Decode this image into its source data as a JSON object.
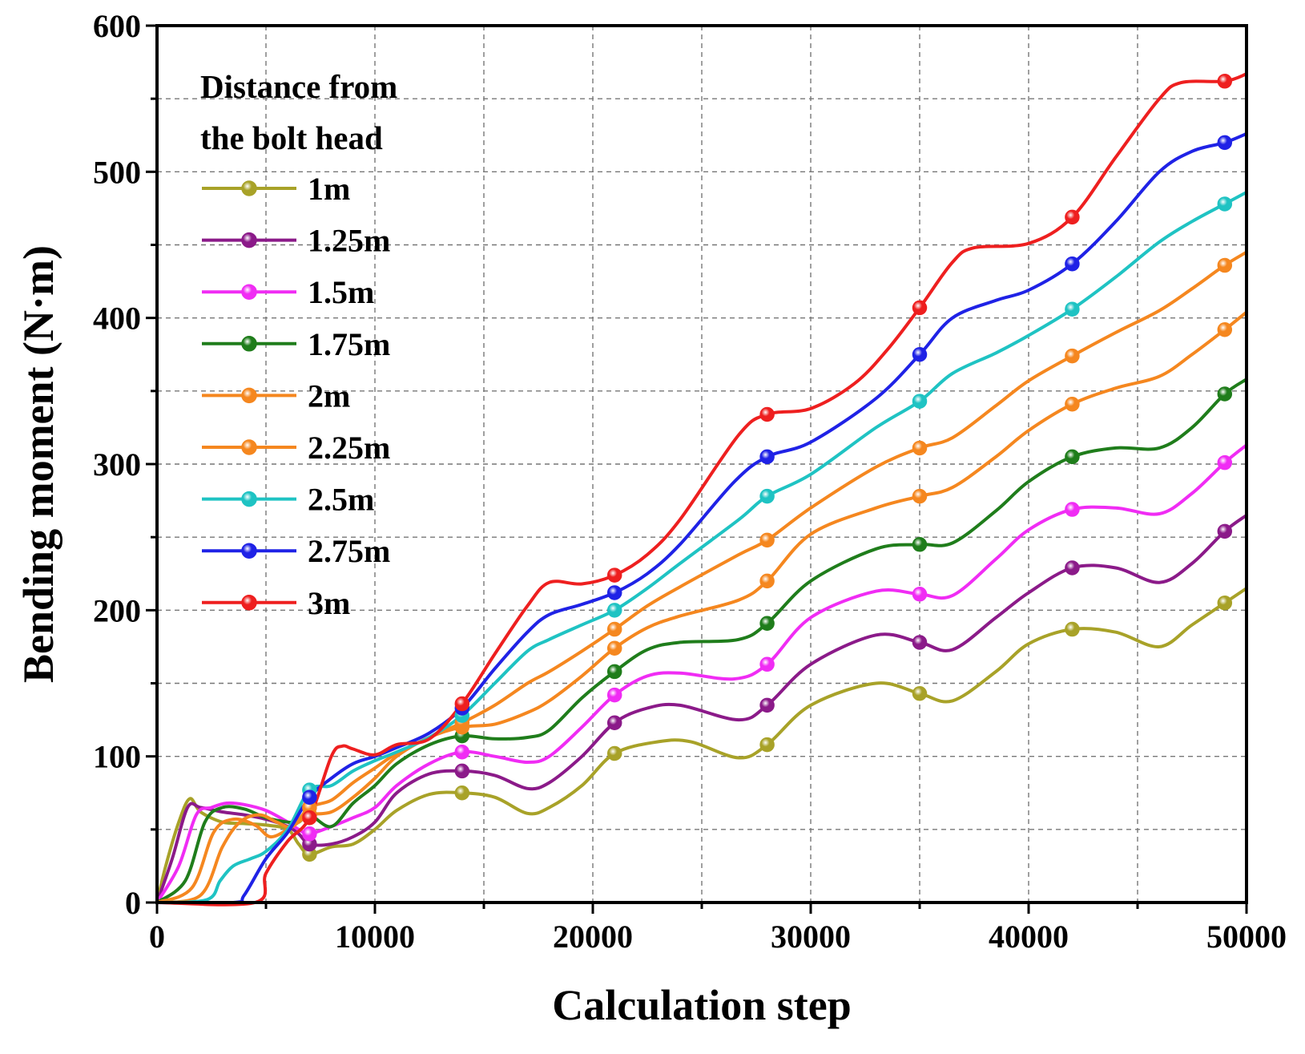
{
  "chart_data": {
    "type": "line",
    "xlabel": "Calculation step",
    "ylabel": "Bending moment (N·m)",
    "xlim": [
      0,
      50000
    ],
    "ylim": [
      0,
      600
    ],
    "x_ticks": [
      0,
      10000,
      20000,
      30000,
      40000,
      50000
    ],
    "x_tick_labels": [
      "0",
      "10000",
      "20000",
      "30000",
      "40000",
      "50000"
    ],
    "y_ticks": [
      0,
      100,
      200,
      300,
      400,
      500,
      600
    ],
    "y_tick_labels": [
      "0",
      "100",
      "200",
      "300",
      "400",
      "500",
      "600"
    ],
    "grid": true,
    "legend": {
      "title_lines": [
        "Distance from",
        "the bolt head"
      ],
      "placement": "top-left"
    },
    "marker_steps": [
      7000,
      14000,
      21000,
      28000,
      35000,
      42000,
      49000
    ],
    "series": [
      {
        "name": "1m",
        "color": "#a8a228",
        "x": [
          0,
          400,
          1000,
          1500,
          2000,
          3000,
          4000,
          5000,
          6000,
          6500,
          7000,
          8000,
          9000,
          10000,
          11000,
          12500,
          14000,
          15500,
          17000,
          18000,
          19500,
          21000,
          23000,
          24500,
          26700,
          28000,
          30000,
          33000,
          35000,
          36500,
          38500,
          40000,
          42000,
          44000,
          46000,
          47500,
          49000,
          50000
        ],
        "y": [
          0,
          25,
          55,
          71,
          62,
          55,
          54,
          53,
          50,
          40,
          33,
          38,
          40,
          50,
          63,
          74,
          75,
          72,
          61,
          65,
          80,
          102,
          110,
          110,
          99,
          108,
          135,
          150,
          143,
          138,
          158,
          177,
          187,
          185,
          175,
          190,
          205,
          215
        ]
      },
      {
        "name": "1.25m",
        "color": "#8b1a89",
        "x": [
          0,
          700,
          1400,
          2000,
          3000,
          4000,
          5000,
          6000,
          6500,
          7000,
          8000,
          9000,
          10000,
          11000,
          12500,
          14000,
          15500,
          17000,
          18000,
          19500,
          21000,
          22500,
          24000,
          26700,
          28000,
          30000,
          33000,
          35000,
          36500,
          38500,
          40000,
          42000,
          44000,
          46000,
          47500,
          49000,
          50000
        ],
        "y": [
          0,
          30,
          65,
          65,
          62,
          60,
          57,
          52,
          47,
          40,
          40,
          45,
          55,
          75,
          88,
          90,
          87,
          78,
          82,
          100,
          123,
          133,
          135,
          125,
          135,
          163,
          183,
          178,
          173,
          195,
          212,
          229,
          229,
          219,
          232,
          254,
          265
        ]
      },
      {
        "name": "1.5m",
        "color": "#f02cf4",
        "x": [
          0,
          1000,
          1800,
          2500,
          3200,
          4000,
          5000,
          6000,
          6500,
          7000,
          8000,
          9000,
          10000,
          11000,
          12500,
          14000,
          15500,
          17000,
          18000,
          19500,
          21000,
          22500,
          24000,
          26500,
          28000,
          30000,
          33000,
          35000,
          36500,
          38500,
          40000,
          42000,
          44000,
          46000,
          47500,
          49000,
          50000
        ],
        "y": [
          0,
          25,
          60,
          65,
          68,
          67,
          63,
          55,
          50,
          47,
          52,
          58,
          65,
          80,
          95,
          103,
          100,
          96,
          100,
          120,
          142,
          155,
          157,
          153,
          163,
          195,
          213,
          211,
          210,
          235,
          255,
          269,
          270,
          266,
          280,
          301,
          313
        ]
      },
      {
        "name": "1.75m",
        "color": "#1f7d1b",
        "x": [
          0,
          1300,
          2200,
          3000,
          4000,
          5000,
          6000,
          6500,
          7000,
          8000,
          9000,
          10000,
          11000,
          12500,
          14000,
          15500,
          17000,
          18000,
          19500,
          21000,
          22500,
          24000,
          26700,
          28000,
          30000,
          33000,
          35000,
          36500,
          38500,
          40000,
          42000,
          44000,
          46000,
          47500,
          49000,
          50000
        ],
        "y": [
          0,
          15,
          55,
          65,
          64,
          58,
          55,
          55,
          60,
          52,
          68,
          80,
          95,
          108,
          114,
          112,
          113,
          118,
          140,
          158,
          173,
          178,
          180,
          191,
          220,
          242,
          245,
          246,
          268,
          288,
          305,
          311,
          311,
          325,
          348,
          358
        ]
      },
      {
        "name": "2m",
        "color": "#f5871f",
        "x": [
          0,
          1600,
          2600,
          3500,
          4500,
          5200,
          6000,
          6500,
          7000,
          8000,
          9000,
          10000,
          11000,
          12500,
          14000,
          15500,
          17000,
          18000,
          19500,
          21000,
          22500,
          24000,
          26700,
          28000,
          30000,
          33000,
          35000,
          36500,
          38500,
          40000,
          42000,
          44000,
          46000,
          47500,
          49000,
          50000
        ],
        "y": [
          0,
          10,
          48,
          57,
          53,
          45,
          50,
          55,
          60,
          62,
          72,
          85,
          100,
          113,
          120,
          122,
          130,
          138,
          155,
          174,
          188,
          196,
          207,
          220,
          252,
          270,
          278,
          284,
          305,
          323,
          341,
          352,
          360,
          375,
          392,
          404
        ]
      },
      {
        "name": "2.25m",
        "color": "#f5871f",
        "x": [
          0,
          2000,
          3000,
          3800,
          4700,
          5500,
          6200,
          7000,
          8000,
          9000,
          10000,
          11000,
          12500,
          14000,
          15500,
          17000,
          18000,
          19500,
          21000,
          22500,
          24000,
          26700,
          28000,
          30000,
          33000,
          35000,
          36500,
          38500,
          40000,
          42000,
          44000,
          46000,
          47500,
          49000,
          50000
        ],
        "y": [
          0,
          5,
          38,
          55,
          60,
          55,
          52,
          65,
          70,
          82,
          92,
          102,
          113,
          123,
          135,
          150,
          158,
          172,
          187,
          203,
          216,
          238,
          248,
          270,
          298,
          311,
          318,
          340,
          357,
          374,
          390,
          405,
          420,
          436,
          445
        ]
      },
      {
        "name": "2.5m",
        "color": "#1fc3c3",
        "x": [
          0,
          2300,
          2900,
          3500,
          4300,
          5000,
          6000,
          7000,
          8000,
          9000,
          10000,
          11000,
          12500,
          14000,
          15500,
          17000,
          18000,
          19500,
          21000,
          22500,
          24000,
          26700,
          28000,
          30000,
          33000,
          35000,
          36500,
          38500,
          40000,
          42000,
          44000,
          46000,
          47500,
          49000,
          50000
        ],
        "y": [
          0,
          2,
          15,
          25,
          30,
          35,
          50,
          77,
          80,
          90,
          97,
          103,
          113,
          128,
          150,
          172,
          180,
          190,
          200,
          215,
          232,
          262,
          278,
          293,
          325,
          343,
          362,
          376,
          388,
          406,
          428,
          452,
          466,
          478,
          486
        ]
      },
      {
        "name": "2.75m",
        "color": "#1f22e6",
        "x": [
          0,
          3500,
          4000,
          5000,
          6000,
          7000,
          8000,
          9000,
          10000,
          11000,
          12500,
          14000,
          15500,
          17000,
          18000,
          19500,
          21000,
          22500,
          24000,
          26500,
          28000,
          30000,
          33000,
          35000,
          36500,
          38500,
          40000,
          42000,
          44000,
          46000,
          47500,
          49000,
          50000
        ],
        "y": [
          0,
          0,
          5,
          30,
          48,
          72,
          85,
          95,
          100,
          106,
          116,
          133,
          160,
          185,
          197,
          204,
          212,
          225,
          245,
          288,
          305,
          315,
          345,
          375,
          400,
          412,
          419,
          437,
          466,
          500,
          514,
          520,
          526
        ]
      },
      {
        "name": "3m",
        "color": "#ee1f1f",
        "x": [
          0,
          4500,
          5000,
          6000,
          7000,
          8000,
          8500,
          9000,
          10000,
          11000,
          12500,
          14000,
          15500,
          17000,
          18000,
          19500,
          21000,
          22500,
          24000,
          26700,
          28000,
          30000,
          32000,
          33500,
          35000,
          36500,
          37500,
          40000,
          42000,
          44000,
          46000,
          47000,
          49000,
          50000
        ],
        "y": [
          0,
          0,
          20,
          42,
          58,
          100,
          107,
          105,
          101,
          108,
          112,
          136,
          170,
          203,
          219,
          218,
          224,
          238,
          262,
          320,
          334,
          338,
          355,
          378,
          407,
          438,
          448,
          451,
          469,
          510,
          550,
          561,
          562,
          567
        ]
      }
    ]
  }
}
